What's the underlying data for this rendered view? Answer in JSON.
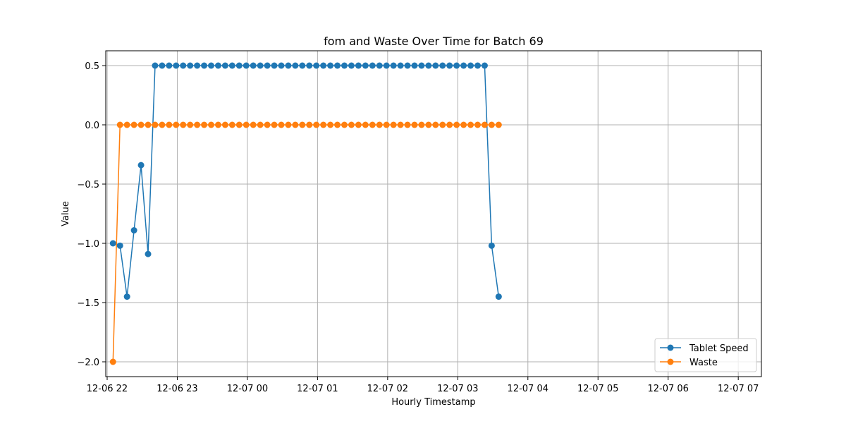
{
  "chart_data": {
    "type": "line",
    "title": "fom and Waste Over Time for Batch 69",
    "xlabel": "Hourly Timestamp",
    "ylabel": "Value",
    "x_start": "2023-12-06T22:05:00",
    "x_step_minutes": 6,
    "x_tick_labels": [
      "12-06 22",
      "12-06 23",
      "12-07 00",
      "12-07 01",
      "12-07 02",
      "12-07 03",
      "12-07 04",
      "12-07 05",
      "12-07 06",
      "12-07 07"
    ],
    "x_tick_hours": [
      22,
      23,
      24,
      25,
      26,
      27,
      28,
      29,
      30,
      31
    ],
    "xlim_hours": [
      21.98,
      31.33
    ],
    "ylim": [
      -2.125,
      0.625
    ],
    "y_ticks": [
      0.5,
      0.0,
      -0.5,
      -1.0,
      -1.5,
      -2.0
    ],
    "y_tick_labels": [
      "0.5",
      "0.0",
      "−0.5",
      "−1.0",
      "−1.5",
      "−2.0"
    ],
    "grid": true,
    "legend_position": "lower-right",
    "series": [
      {
        "name": "Tablet Speed",
        "color": "#1f77b4",
        "marker": "circle",
        "values": [
          -1.0,
          -1.02,
          -1.45,
          -0.89,
          -0.34,
          -1.09,
          0.5,
          0.5,
          0.5,
          0.5,
          0.5,
          0.5,
          0.5,
          0.5,
          0.5,
          0.5,
          0.5,
          0.5,
          0.5,
          0.5,
          0.5,
          0.5,
          0.5,
          0.5,
          0.5,
          0.5,
          0.5,
          0.5,
          0.5,
          0.5,
          0.5,
          0.5,
          0.5,
          0.5,
          0.5,
          0.5,
          0.5,
          0.5,
          0.5,
          0.5,
          0.5,
          0.5,
          0.5,
          0.5,
          0.5,
          0.5,
          0.5,
          0.5,
          0.5,
          0.5,
          0.5,
          0.5,
          0.5,
          0.5,
          -1.02,
          -1.45
        ]
      },
      {
        "name": "Waste",
        "color": "#ff7f0e",
        "marker": "circle",
        "values": [
          -2.0,
          0.0,
          0.0,
          0.0,
          0.0,
          0.0,
          0.0,
          0.0,
          0.0,
          0.0,
          0.0,
          0.0,
          0.0,
          0.0,
          0.0,
          0.0,
          0.0,
          0.0,
          0.0,
          0.0,
          0.0,
          0.0,
          0.0,
          0.0,
          0.0,
          0.0,
          0.0,
          0.0,
          0.0,
          0.0,
          0.0,
          0.0,
          0.0,
          0.0,
          0.0,
          0.0,
          0.0,
          0.0,
          0.0,
          0.0,
          0.0,
          0.0,
          0.0,
          0.0,
          0.0,
          0.0,
          0.0,
          0.0,
          0.0,
          0.0,
          0.0,
          0.0,
          0.0,
          0.0,
          0.0,
          0.0
        ]
      }
    ]
  }
}
